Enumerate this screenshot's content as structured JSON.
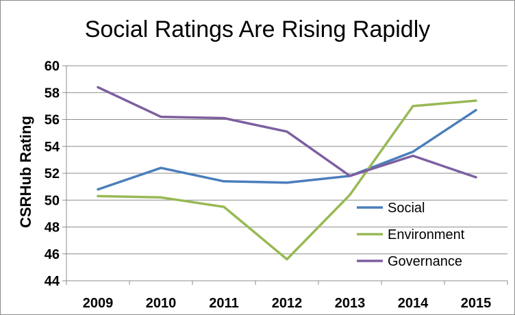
{
  "chart_data": {
    "type": "line",
    "title": "Social Ratings Are Rising Rapidly",
    "xlabel": "",
    "ylabel": "CSRHub Rating",
    "categories": [
      "2009",
      "2010",
      "2011",
      "2012",
      "2013",
      "2014",
      "2015"
    ],
    "ylim": [
      44,
      60
    ],
    "yticks": [
      "44",
      "46",
      "48",
      "50",
      "52",
      "54",
      "56",
      "58",
      "60"
    ],
    "grid": "horizontal",
    "legend": "bottom-right",
    "series": [
      {
        "name": "Social",
        "color": "#4a7ebb",
        "values": [
          50.8,
          52.4,
          51.4,
          51.3,
          51.8,
          53.6,
          56.7
        ]
      },
      {
        "name": "Environment",
        "color": "#98b954",
        "values": [
          50.3,
          50.2,
          49.5,
          45.6,
          50.4,
          57.0,
          57.4
        ]
      },
      {
        "name": "Governance",
        "color": "#7d5fa0",
        "values": [
          58.4,
          56.2,
          56.1,
          55.1,
          51.8,
          53.3,
          51.7
        ]
      }
    ]
  }
}
